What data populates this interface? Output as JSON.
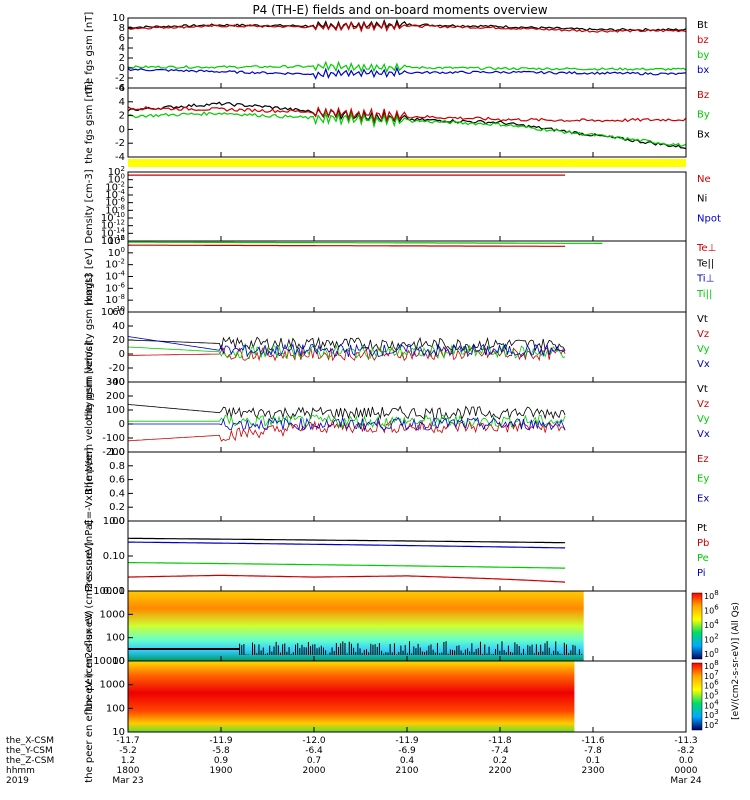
{
  "title": "P4 (TH-E) fields and on-board moments overview",
  "footer": {
    "row_labels": [
      "the_X-CSM",
      "the_Y-CSM",
      "the_Z-CSM",
      "hhmm",
      "2019"
    ],
    "columns": [
      {
        "x": "-11.7",
        "y": "-5.2",
        "z": "1.2",
        "hhmm": "1800",
        "date": "Mar 23"
      },
      {
        "x": "-11.9",
        "y": "-5.8",
        "z": "0.9",
        "hhmm": "1900",
        "date": ""
      },
      {
        "x": "-12.0",
        "y": "-6.4",
        "z": "0.7",
        "hhmm": "2000",
        "date": ""
      },
      {
        "x": "-11.9",
        "y": "-6.9",
        "z": "0.4",
        "hhmm": "2100",
        "date": ""
      },
      {
        "x": "-11.8",
        "y": "-7.4",
        "z": "0.2",
        "hhmm": "2200",
        "date": ""
      },
      {
        "x": "-11.6",
        "y": "-7.8",
        "z": "0.1",
        "hhmm": "2300",
        "date": ""
      },
      {
        "x": "-11.3",
        "y": "-8.2",
        "z": "0.0",
        "hhmm": "0000",
        "date": "Mar 24"
      }
    ]
  },
  "colorbar": {
    "label": "[eV/(cm2-s-sr-eV)] (All Qs)",
    "ticks_top": [
      "10^8",
      "10^6",
      "10^4",
      "10^2",
      "10^0"
    ],
    "ticks_bottom": [
      "10^8",
      "10^7",
      "10^6",
      "10^5",
      "10^4",
      "10^3",
      "10^2"
    ]
  },
  "colors": {
    "black": "#000000",
    "red": "#cc0000",
    "green": "#00cc00",
    "blue": "#0000cc",
    "yellow": "#ffff00"
  },
  "chart_data": [
    {
      "type": "line",
      "panel": "fgs_gsm",
      "ylabel": "the fgs gsm [nT]",
      "ylim": [
        -5,
        10
      ],
      "yticks": [
        "10",
        "8",
        "6",
        "4",
        "2",
        "0",
        "-2",
        "-4"
      ],
      "x_hours": [
        18,
        24
      ],
      "series": [
        {
          "name": "Bt",
          "color": "#000000",
          "x": [
            18,
            19,
            20,
            21,
            22,
            23,
            24
          ],
          "y": [
            8.0,
            8.5,
            8.3,
            8.6,
            8.2,
            7.5,
            7.5
          ]
        },
        {
          "name": "bz",
          "color": "#cc0000",
          "x": [
            18,
            19,
            20,
            21,
            22,
            23,
            24
          ],
          "y": [
            7.8,
            8.3,
            8.1,
            8.3,
            7.9,
            7.2,
            7.3
          ]
        },
        {
          "name": "by",
          "color": "#00cc00",
          "x": [
            18,
            19,
            20,
            21,
            22,
            23,
            24
          ],
          "y": [
            -0.5,
            -0.5,
            -0.4,
            -0.6,
            -0.8,
            -0.9,
            -1.0
          ]
        },
        {
          "name": "bx",
          "color": "#0000cc",
          "x": [
            18,
            19,
            20,
            21,
            22,
            23,
            24
          ],
          "y": [
            -1.0,
            -1.5,
            -2.0,
            -1.7,
            -1.6,
            -1.8,
            -2.0
          ]
        }
      ],
      "legend": [
        {
          "label": "Bt",
          "color": "#000000"
        },
        {
          "label": "bz",
          "color": "#cc0000"
        },
        {
          "label": "by",
          "color": "#00cc00"
        },
        {
          "label": "bx",
          "color": "#0000cc"
        }
      ]
    },
    {
      "type": "line",
      "panel": "fgs_gsm_dsl",
      "ylabel": "the fgs gsm [nT]",
      "ylim": [
        -5,
        6
      ],
      "yticks": [
        "6",
        "4",
        "2",
        "0",
        "-2",
        "-4"
      ],
      "x_hours": [
        18,
        24
      ],
      "series": [
        {
          "name": "Bx",
          "color": "#000000",
          "x": [
            18,
            19,
            19.5,
            20,
            21,
            22,
            22.5,
            23,
            24
          ],
          "y": [
            2.5,
            3.5,
            3.0,
            2.2,
            1.0,
            0.5,
            -0.5,
            -1.5,
            -3.5
          ]
        },
        {
          "name": "Bz",
          "color": "#cc0000",
          "x": [
            18,
            19,
            20,
            21,
            22,
            23,
            24
          ],
          "y": [
            2.8,
            2.6,
            2.2,
            1.5,
            1.0,
            0.8,
            1.0
          ]
        },
        {
          "name": "By",
          "color": "#00cc00",
          "x": [
            18,
            19,
            20,
            21,
            22,
            23,
            24
          ],
          "y": [
            1.5,
            2.0,
            1.2,
            0.8,
            0.2,
            -1.5,
            -3.2
          ]
        }
      ],
      "legend": [
        {
          "label": "Bz",
          "color": "#cc0000"
        },
        {
          "label": "By",
          "color": "#00cc00"
        },
        {
          "label": "Bx",
          "color": "#000000"
        }
      ]
    },
    {
      "type": "line",
      "panel": "density",
      "ylabel": "Density [cm-3]",
      "ylog": true,
      "ylim": [
        -16,
        2
      ],
      "yticks": [
        "10^2",
        "10^0",
        "10^-2",
        "10^-4",
        "10^-6",
        "10^-8",
        "10^-10",
        "10^-12",
        "10^-14",
        "10^-16"
      ],
      "series": [
        {
          "name": "Ne",
          "color": "#cc0000",
          "x": [
            18,
            22.7
          ],
          "y": [
            1.2,
            1.2
          ]
        }
      ],
      "legend": [
        {
          "label": "Ne",
          "color": "#cc0000"
        },
        {
          "label": "Ni",
          "color": "#000000"
        },
        {
          "label": "Npot",
          "color": "#0000cc"
        }
      ]
    },
    {
      "type": "line",
      "panel": "temperature",
      "ylabel": "magt3 [eV]",
      "ylog": true,
      "ylim": [
        -10,
        2
      ],
      "yticks": [
        "10^2",
        "10^0",
        "10^-2",
        "10^-4",
        "10^-6",
        "10^-8",
        "10^-10"
      ],
      "series": [
        {
          "name": "Te",
          "color": "#cc0000",
          "x": [
            18,
            22.7
          ],
          "y": [
            1.3,
            1.1
          ]
        },
        {
          "name": "Ti",
          "color": "#00cc00",
          "x": [
            18,
            23.1
          ],
          "y": [
            1.8,
            1.6
          ]
        }
      ],
      "legend": [
        {
          "label": "Te⊥",
          "color": "#cc0000"
        },
        {
          "label": "Te||",
          "color": "#000000"
        },
        {
          "label": "Ti⊥",
          "color": "#0000cc"
        },
        {
          "label": "Ti||",
          "color": "#00cc00"
        }
      ]
    },
    {
      "type": "line",
      "panel": "peim_velocity",
      "ylabel": "the peim velocity gsm [km/s]",
      "ylim": [
        -40,
        60
      ],
      "yticks": [
        "60",
        "40",
        "20",
        "0",
        "-20",
        "-40"
      ],
      "series": [
        {
          "name": "Vt",
          "color": "#000000",
          "x": [
            18,
            19,
            20,
            21,
            22,
            22.7
          ],
          "y": [
            20,
            15,
            15,
            14,
            14,
            14
          ]
        },
        {
          "name": "Vz",
          "color": "#cc0000",
          "x": [
            18,
            19,
            20,
            21,
            22,
            22.7
          ],
          "y": [
            -2,
            0,
            0,
            0,
            0,
            0
          ]
        },
        {
          "name": "Vy",
          "color": "#00cc00",
          "x": [
            18,
            19,
            20,
            21,
            22,
            22.7
          ],
          "y": [
            10,
            3,
            3,
            3,
            3,
            3
          ]
        },
        {
          "name": "Vx",
          "color": "#0000cc",
          "x": [
            18,
            19,
            20,
            21,
            22,
            22.7
          ],
          "y": [
            25,
            5,
            5,
            5,
            5,
            5
          ]
        }
      ],
      "legend": [
        {
          "label": "Vt",
          "color": "#000000"
        },
        {
          "label": "Vz",
          "color": "#cc0000"
        },
        {
          "label": "Vy",
          "color": "#00cc00"
        },
        {
          "label": "Vx",
          "color": "#0000cc"
        }
      ]
    },
    {
      "type": "line",
      "panel": "peem_velocity",
      "ylabel": "the peem velocity gsm [km/s]",
      "ylim": [
        -200,
        300
      ],
      "yticks": [
        "300",
        "200",
        "100",
        "0",
        "-100",
        "-200"
      ],
      "series": [
        {
          "name": "Vt",
          "color": "#000000",
          "x": [
            18,
            19,
            20,
            21,
            22,
            22.7
          ],
          "y": [
            140,
            80,
            80,
            80,
            80,
            80
          ]
        },
        {
          "name": "Vz",
          "color": "#cc0000",
          "x": [
            18,
            19,
            20,
            21,
            22,
            22.7
          ],
          "y": [
            -120,
            -80,
            -20,
            -20,
            -20,
            -20
          ]
        },
        {
          "name": "Vy",
          "color": "#00cc00",
          "x": [
            18,
            19,
            20,
            21,
            22,
            22.7
          ],
          "y": [
            20,
            20,
            20,
            20,
            20,
            20
          ]
        },
        {
          "name": "Vx",
          "color": "#0000cc",
          "x": [
            18,
            19,
            20,
            21,
            22,
            22.7
          ],
          "y": [
            0,
            0,
            0,
            0,
            0,
            0
          ]
        }
      ],
      "legend": [
        {
          "label": "Vt",
          "color": "#000000"
        },
        {
          "label": "Vz",
          "color": "#cc0000"
        },
        {
          "label": "Vy",
          "color": "#00cc00"
        },
        {
          "label": "Vx",
          "color": "#0000cc"
        }
      ]
    },
    {
      "type": "line",
      "panel": "efield",
      "ylabel": "E=-VxB [mV/m]",
      "ylim": [
        0,
        1
      ],
      "yticks": [
        "1.0",
        "0.8",
        "0.6",
        "0.4",
        "0.2",
        "0.0"
      ],
      "series": [],
      "legend": [
        {
          "label": "Ez",
          "color": "#cc0000"
        },
        {
          "label": "Ey",
          "color": "#00cc00"
        },
        {
          "label": "Ex",
          "color": "#0000cc"
        }
      ]
    },
    {
      "type": "line",
      "panel": "pressure",
      "ylabel": "Pressure [nPa]",
      "ylog": true,
      "ylim": [
        -2,
        0
      ],
      "yticks": [
        "1.00",
        "0.10",
        "0.01"
      ],
      "series": [
        {
          "name": "Pt",
          "color": "#000000",
          "x": [
            18,
            22.7
          ],
          "y": [
            0.32,
            0.24
          ]
        },
        {
          "name": "Pi",
          "color": "#0000cc",
          "x": [
            18,
            22.7
          ],
          "y": [
            0.25,
            0.17
          ]
        },
        {
          "name": "Pe",
          "color": "#00cc00",
          "x": [
            18,
            22.7
          ],
          "y": [
            0.065,
            0.045
          ]
        },
        {
          "name": "Pb",
          "color": "#cc0000",
          "x": [
            18,
            19,
            20,
            21,
            22,
            22.7
          ],
          "y": [
            0.025,
            0.028,
            0.025,
            0.027,
            0.022,
            0.018
          ]
        }
      ],
      "legend": [
        {
          "label": "Pt",
          "color": "#000000"
        },
        {
          "label": "Pb",
          "color": "#cc0000"
        },
        {
          "label": "Pe",
          "color": "#00cc00"
        },
        {
          "label": "Pi",
          "color": "#0000cc"
        }
      ]
    },
    {
      "type": "heatmap",
      "panel": "peir_en_eflux",
      "ylabel": "the peir en eflux eV (cm2-s-sr-eV)",
      "ylog": true,
      "ylim": [
        0.8,
        4.3
      ],
      "yticks": [
        "10000",
        "1000",
        "100",
        "10"
      ],
      "x_end_hour": 22.9
    },
    {
      "type": "heatmap",
      "panel": "peer_en_eflux",
      "ylabel": "the peer en eflux eV (cm2-s-sr-eV)",
      "ylog": true,
      "ylim": [
        0.8,
        4.3
      ],
      "yticks": [
        "10000",
        "1000",
        "100",
        "10"
      ],
      "x_end_hour": 22.8
    }
  ]
}
